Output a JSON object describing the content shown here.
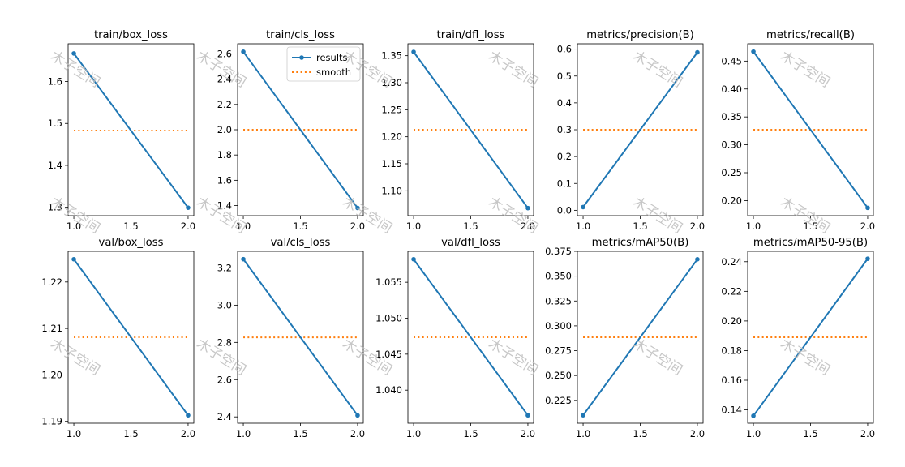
{
  "chart_data": [
    {
      "type": "line",
      "title": "train/box_loss",
      "x": [
        1.0,
        2.0
      ],
      "series": [
        {
          "name": "results",
          "values": [
            1.667,
            1.299
          ]
        },
        {
          "name": "smooth",
          "values": [
            1.483,
            1.483
          ]
        }
      ],
      "xlim": [
        0.95,
        2.05
      ],
      "ylim": [
        1.28,
        1.69
      ],
      "xticks": [
        "1.0",
        "1.5",
        "2.0"
      ],
      "yticks": [
        "1.3",
        "1.4",
        "1.5",
        "1.6"
      ],
      "grid": false
    },
    {
      "type": "line",
      "title": "train/cls_loss",
      "x": [
        1.0,
        2.0
      ],
      "series": [
        {
          "name": "results",
          "values": [
            2.617,
            1.381
          ]
        },
        {
          "name": "smooth",
          "values": [
            2.0,
            2.0
          ]
        }
      ],
      "xlim": [
        0.95,
        2.05
      ],
      "ylim": [
        1.32,
        2.68
      ],
      "xticks": [
        "1.0",
        "1.5",
        "2.0"
      ],
      "yticks": [
        "1.4",
        "1.6",
        "1.8",
        "2.0",
        "2.2",
        "2.4",
        "2.6"
      ],
      "legend": {
        "placement": "top-right",
        "entries": [
          "results",
          "smooth"
        ]
      },
      "grid": false
    },
    {
      "type": "line",
      "title": "train/dfl_loss",
      "x": [
        1.0,
        2.0
      ],
      "series": [
        {
          "name": "results",
          "values": [
            1.357,
            1.068
          ]
        },
        {
          "name": "smooth",
          "values": [
            1.213,
            1.213
          ]
        }
      ],
      "xlim": [
        0.95,
        2.05
      ],
      "ylim": [
        1.054,
        1.372
      ],
      "xticks": [
        "1.0",
        "1.5",
        "2.0"
      ],
      "yticks": [
        "1.10",
        "1.15",
        "1.20",
        "1.25",
        "1.30",
        "1.35"
      ],
      "grid": false
    },
    {
      "type": "line",
      "title": "metrics/precision(B)",
      "x": [
        1.0,
        2.0
      ],
      "series": [
        {
          "name": "results",
          "values": [
            0.012,
            0.588
          ]
        },
        {
          "name": "smooth",
          "values": [
            0.3,
            0.3
          ]
        }
      ],
      "xlim": [
        0.95,
        2.05
      ],
      "ylim": [
        -0.02,
        0.62
      ],
      "xticks": [
        "1.0",
        "1.5",
        "2.0"
      ],
      "yticks": [
        "0.0",
        "0.1",
        "0.2",
        "0.3",
        "0.4",
        "0.5",
        "0.6"
      ],
      "grid": false
    },
    {
      "type": "line",
      "title": "metrics/recall(B)",
      "x": [
        1.0,
        2.0
      ],
      "series": [
        {
          "name": "results",
          "values": [
            0.467,
            0.187
          ]
        },
        {
          "name": "smooth",
          "values": [
            0.327,
            0.327
          ]
        }
      ],
      "xlim": [
        0.95,
        2.05
      ],
      "ylim": [
        0.173,
        0.481
      ],
      "xticks": [
        "1.0",
        "1.5",
        "2.0"
      ],
      "yticks": [
        "0.20",
        "0.25",
        "0.30",
        "0.35",
        "0.40",
        "0.45"
      ],
      "grid": false
    },
    {
      "type": "line",
      "title": "val/box_loss",
      "x": [
        1.0,
        2.0
      ],
      "series": [
        {
          "name": "results",
          "values": [
            1.2249,
            1.1913
          ]
        },
        {
          "name": "smooth",
          "values": [
            1.2081,
            1.2081
          ]
        }
      ],
      "xlim": [
        0.95,
        2.05
      ],
      "ylim": [
        1.1896,
        1.2266
      ],
      "xticks": [
        "1.0",
        "1.5",
        "2.0"
      ],
      "yticks": [
        "1.19",
        "1.20",
        "1.21",
        "1.22"
      ],
      "grid": false
    },
    {
      "type": "line",
      "title": "val/cls_loss",
      "x": [
        1.0,
        2.0
      ],
      "series": [
        {
          "name": "results",
          "values": [
            3.247,
            2.408
          ]
        },
        {
          "name": "smooth",
          "values": [
            2.827,
            2.827
          ]
        }
      ],
      "xlim": [
        0.95,
        2.05
      ],
      "ylim": [
        2.366,
        3.289
      ],
      "xticks": [
        "1.0",
        "1.5",
        "2.0"
      ],
      "yticks": [
        "2.4",
        "2.6",
        "2.8",
        "3.0",
        "3.2"
      ],
      "grid": false
    },
    {
      "type": "line",
      "title": "val/dfl_loss",
      "x": [
        1.0,
        2.0
      ],
      "series": [
        {
          "name": "results",
          "values": [
            1.0582,
            1.0365
          ]
        },
        {
          "name": "smooth",
          "values": [
            1.04735,
            1.04735
          ]
        }
      ],
      "xlim": [
        0.95,
        2.05
      ],
      "ylim": [
        1.0354,
        1.0593
      ],
      "xticks": [
        "1.0",
        "1.5",
        "2.0"
      ],
      "yticks": [
        "1.040",
        "1.045",
        "1.050",
        "1.055"
      ],
      "grid": false
    },
    {
      "type": "line",
      "title": "metrics/mAP50(B)",
      "x": [
        1.0,
        2.0
      ],
      "series": [
        {
          "name": "results",
          "values": [
            0.21,
            0.367
          ]
        },
        {
          "name": "smooth",
          "values": [
            0.2885,
            0.2885
          ]
        }
      ],
      "xlim": [
        0.95,
        2.05
      ],
      "ylim": [
        0.202,
        0.375
      ],
      "xticks": [
        "1.0",
        "1.5",
        "2.0"
      ],
      "yticks": [
        "0.225",
        "0.250",
        "0.275",
        "0.300",
        "0.325",
        "0.350",
        "0.375"
      ],
      "grid": false
    },
    {
      "type": "line",
      "title": "metrics/mAP50-95(B)",
      "x": [
        1.0,
        2.0
      ],
      "series": [
        {
          "name": "results",
          "values": [
            0.136,
            0.242
          ]
        },
        {
          "name": "smooth",
          "values": [
            0.189,
            0.189
          ]
        }
      ],
      "xlim": [
        0.95,
        2.05
      ],
      "ylim": [
        0.131,
        0.247
      ],
      "xticks": [
        "1.0",
        "1.5",
        "2.0"
      ],
      "yticks": [
        "0.14",
        "0.16",
        "0.18",
        "0.20",
        "0.22",
        "0.24"
      ],
      "grid": false
    }
  ],
  "watermark": {
    "text": "木子空间"
  },
  "colors": {
    "results": "#1f77b4",
    "smooth": "#ff7f0e",
    "axis": "#000000",
    "watermark": "#bdbdbd"
  }
}
